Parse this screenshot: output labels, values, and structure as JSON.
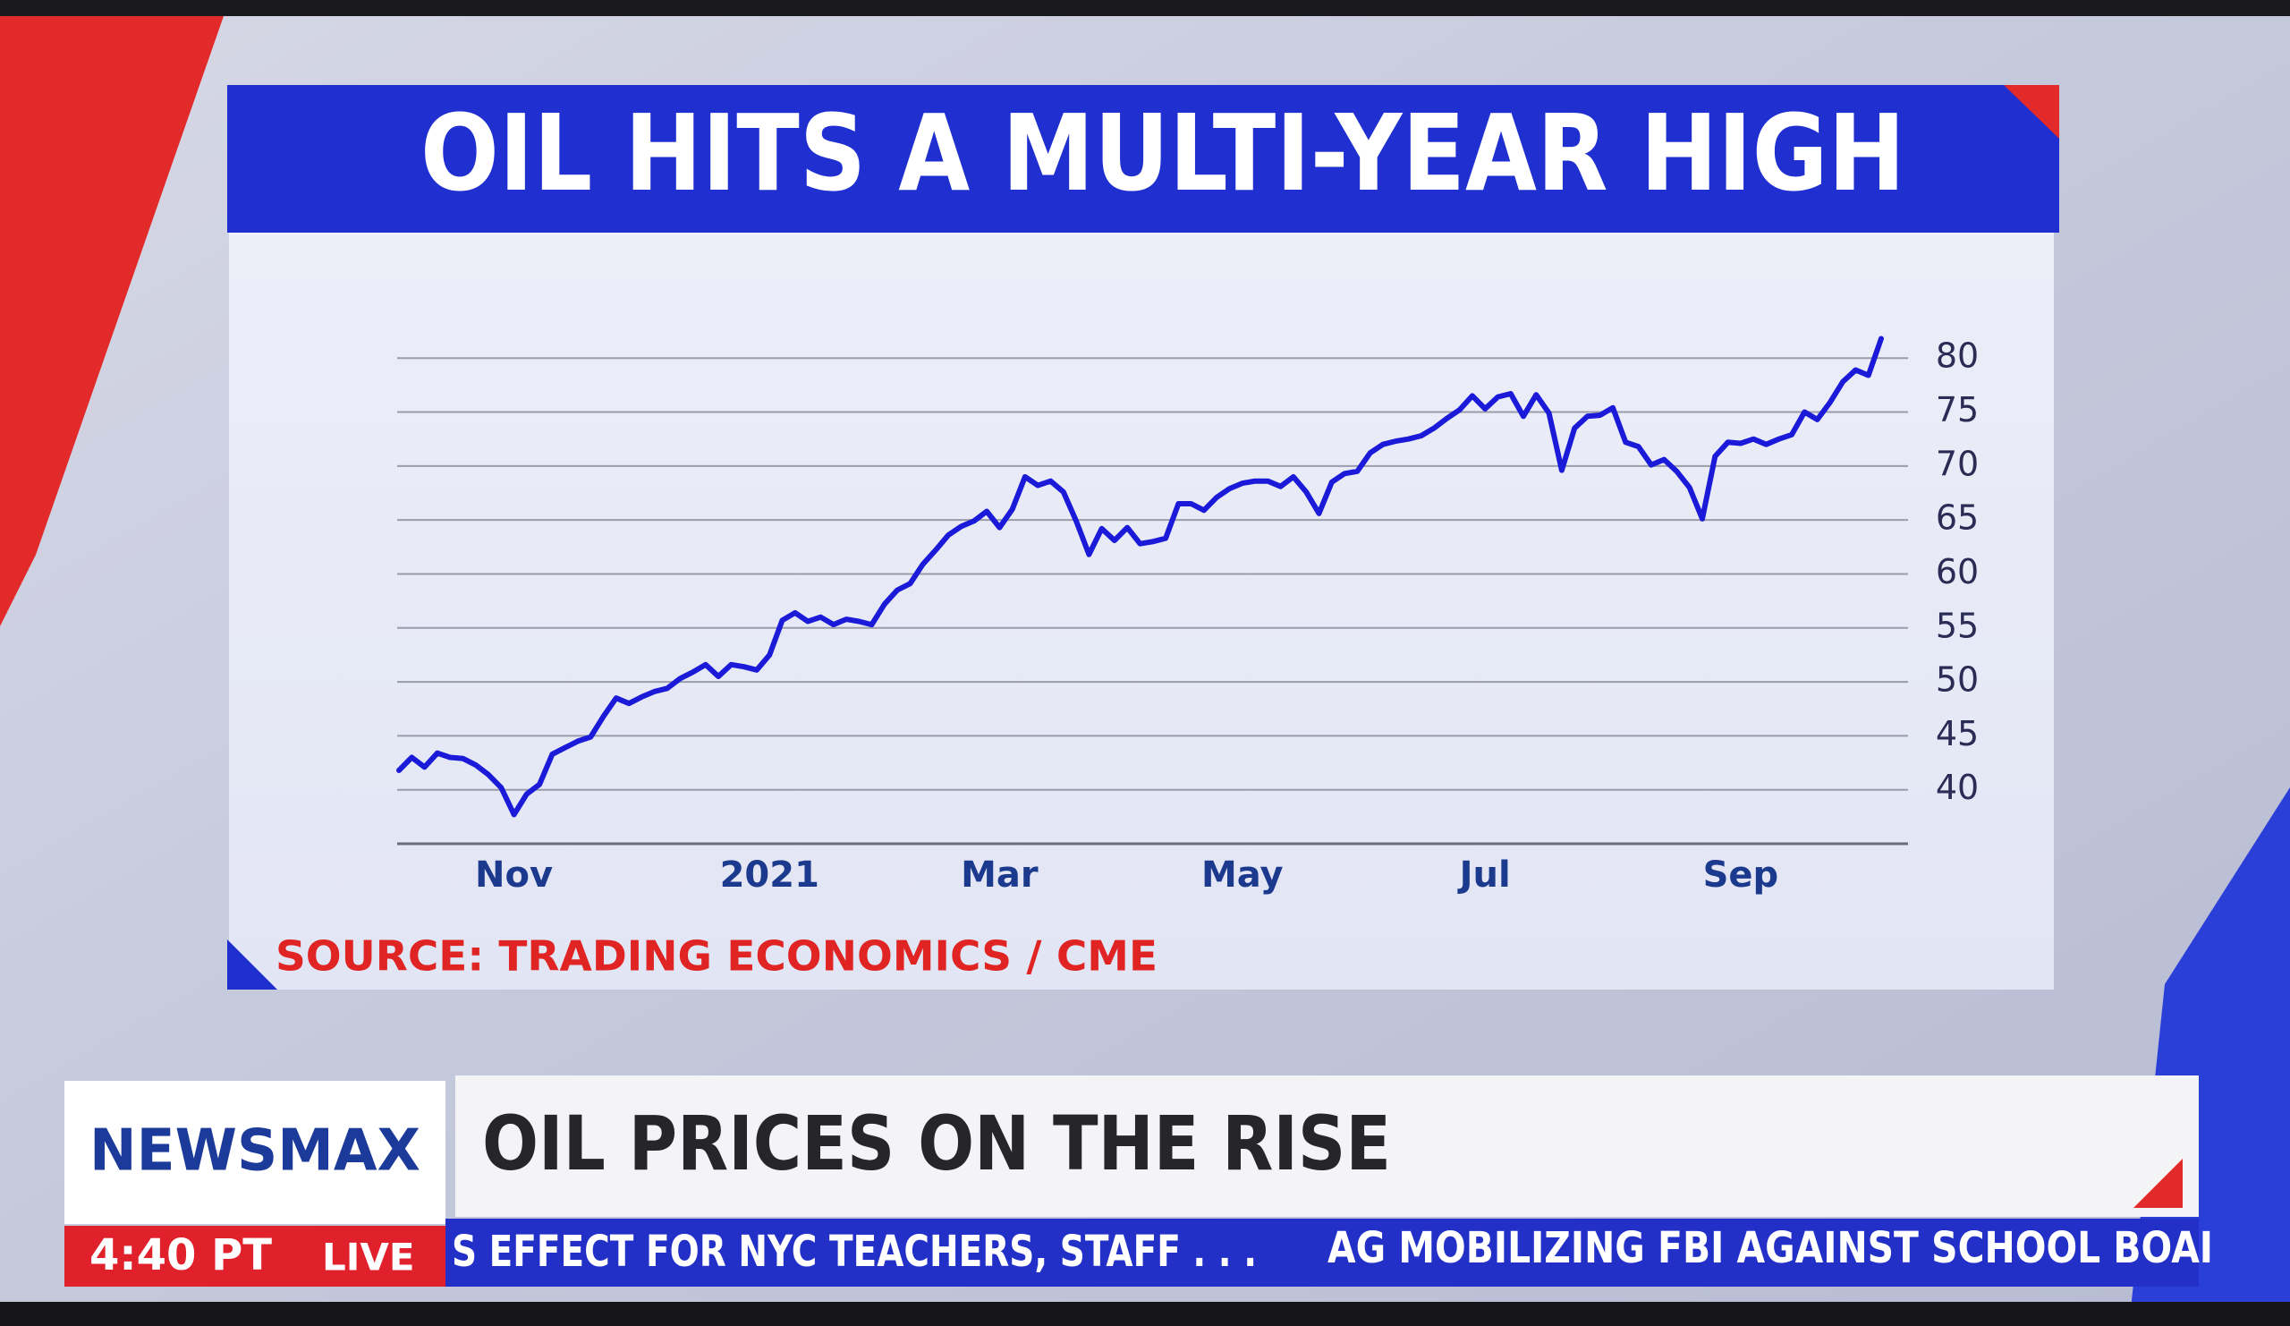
{
  "chart_data": {
    "type": "line",
    "title": "OIL HITS A MULTI-YEAR HIGH",
    "source": "SOURCE: TRADING ECONOMICS / CME",
    "categories": [
      null,
      null,
      null,
      null,
      null,
      null,
      null,
      null,
      null,
      "Nov",
      null,
      null,
      null,
      null,
      null,
      null,
      null,
      null,
      null,
      null,
      null,
      null,
      null,
      null,
      null,
      null,
      null,
      null,
      null,
      "2021",
      null,
      null,
      null,
      null,
      null,
      null,
      null,
      null,
      null,
      null,
      null,
      null,
      null,
      null,
      null,
      null,
      null,
      "Mar",
      null,
      null,
      null,
      null,
      null,
      null,
      null,
      null,
      null,
      null,
      null,
      null,
      null,
      null,
      null,
      null,
      null,
      null,
      "May",
      null,
      null,
      null,
      null,
      null,
      null,
      null,
      null,
      null,
      null,
      null,
      null,
      null,
      null,
      null,
      null,
      null,
      null,
      "Jul",
      null,
      null,
      null,
      null,
      null,
      null,
      null,
      null,
      null,
      null,
      null,
      null,
      null,
      null,
      null,
      null,
      null,
      null,
      null,
      "Sep",
      null,
      null,
      null,
      null,
      null,
      null,
      null,
      null,
      null,
      null,
      null
    ],
    "values": [
      41.8,
      43.0,
      42.1,
      43.4,
      43.0,
      42.9,
      42.3,
      41.4,
      40.2,
      37.7,
      39.6,
      40.5,
      43.3,
      43.9,
      44.5,
      44.9,
      46.8,
      48.5,
      48.0,
      48.6,
      49.1,
      49.4,
      50.3,
      50.9,
      51.6,
      50.5,
      51.6,
      51.4,
      51.1,
      52.5,
      55.7,
      56.4,
      55.6,
      56.0,
      55.3,
      55.8,
      55.6,
      55.3,
      57.2,
      58.5,
      59.1,
      60.9,
      62.2,
      63.6,
      64.4,
      64.9,
      65.8,
      64.3,
      66.0,
      69.0,
      68.2,
      68.6,
      67.6,
      64.9,
      61.8,
      64.2,
      63.1,
      64.3,
      62.8,
      63.0,
      63.3,
      66.5,
      66.5,
      65.9,
      67.1,
      67.9,
      68.4,
      68.6,
      68.6,
      68.1,
      69.0,
      67.6,
      65.6,
      68.5,
      69.3,
      69.5,
      71.2,
      72.0,
      72.3,
      72.5,
      72.8,
      73.5,
      74.4,
      75.2,
      76.5,
      75.3,
      76.4,
      76.7,
      74.6,
      76.6,
      74.9,
      69.6,
      73.5,
      74.6,
      74.7,
      75.4,
      72.2,
      71.8,
      70.1,
      70.6,
      69.5,
      68.0,
      65.1,
      70.9,
      72.2,
      72.1,
      72.5,
      72.0,
      72.5,
      72.9,
      75.0,
      74.3,
      75.9,
      77.8,
      78.9,
      78.4,
      81.8
    ],
    "color": "#1a1ad8",
    "ylim": [
      35,
      83
    ],
    "yticks": [
      40,
      45,
      50,
      55,
      60,
      65,
      70,
      75,
      80
    ],
    "grid": true
  },
  "lower_third": {
    "brand": "NEWSMAX",
    "headline": "OIL PRICES ON THE RISE",
    "time": "4:40 PT",
    "live": "LIVE",
    "ticker": [
      "S EFFECT FOR NYC TEACHERS, STAFF . . .",
      "AG MOBILIZING FBI AGAINST SCHOOL BOAI"
    ]
  }
}
